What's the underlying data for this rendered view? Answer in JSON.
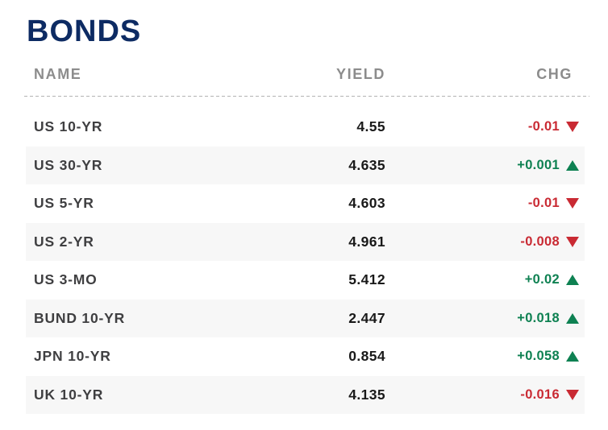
{
  "widget": {
    "title": "BONDS"
  },
  "table": {
    "columns": [
      {
        "label": "NAME"
      },
      {
        "label": "YIELD"
      },
      {
        "label": "CHG"
      }
    ],
    "rows": [
      {
        "name": "US 10-YR",
        "yield": "4.55",
        "chg": "-0.01",
        "direction": "down"
      },
      {
        "name": "US 30-YR",
        "yield": "4.635",
        "chg": "+0.001",
        "direction": "up"
      },
      {
        "name": "US 5-YR",
        "yield": "4.603",
        "chg": "-0.01",
        "direction": "down"
      },
      {
        "name": "US 2-YR",
        "yield": "4.961",
        "chg": "-0.008",
        "direction": "down"
      },
      {
        "name": "US 3-MO",
        "yield": "5.412",
        "chg": "+0.02",
        "direction": "up"
      },
      {
        "name": "BUND 10-YR",
        "yield": "2.447",
        "chg": "+0.018",
        "direction": "up"
      },
      {
        "name": "JPN 10-YR",
        "yield": "0.854",
        "chg": "+0.058",
        "direction": "up"
      },
      {
        "name": "UK 10-YR",
        "yield": "4.135",
        "chg": "-0.016",
        "direction": "down"
      }
    ]
  },
  "icons": {
    "triangle-up-icon": "▲",
    "triangle-down-icon": "▼"
  },
  "colors": {
    "title_text": "#0D2B63",
    "header_text": "#8C8C8C",
    "name_text": "#3F3F41",
    "value_text": "#191919",
    "positive": "#0E8152",
    "negative": "#C92A33",
    "stripe": "#F7F7F7",
    "separator": "#B3B3B3"
  }
}
